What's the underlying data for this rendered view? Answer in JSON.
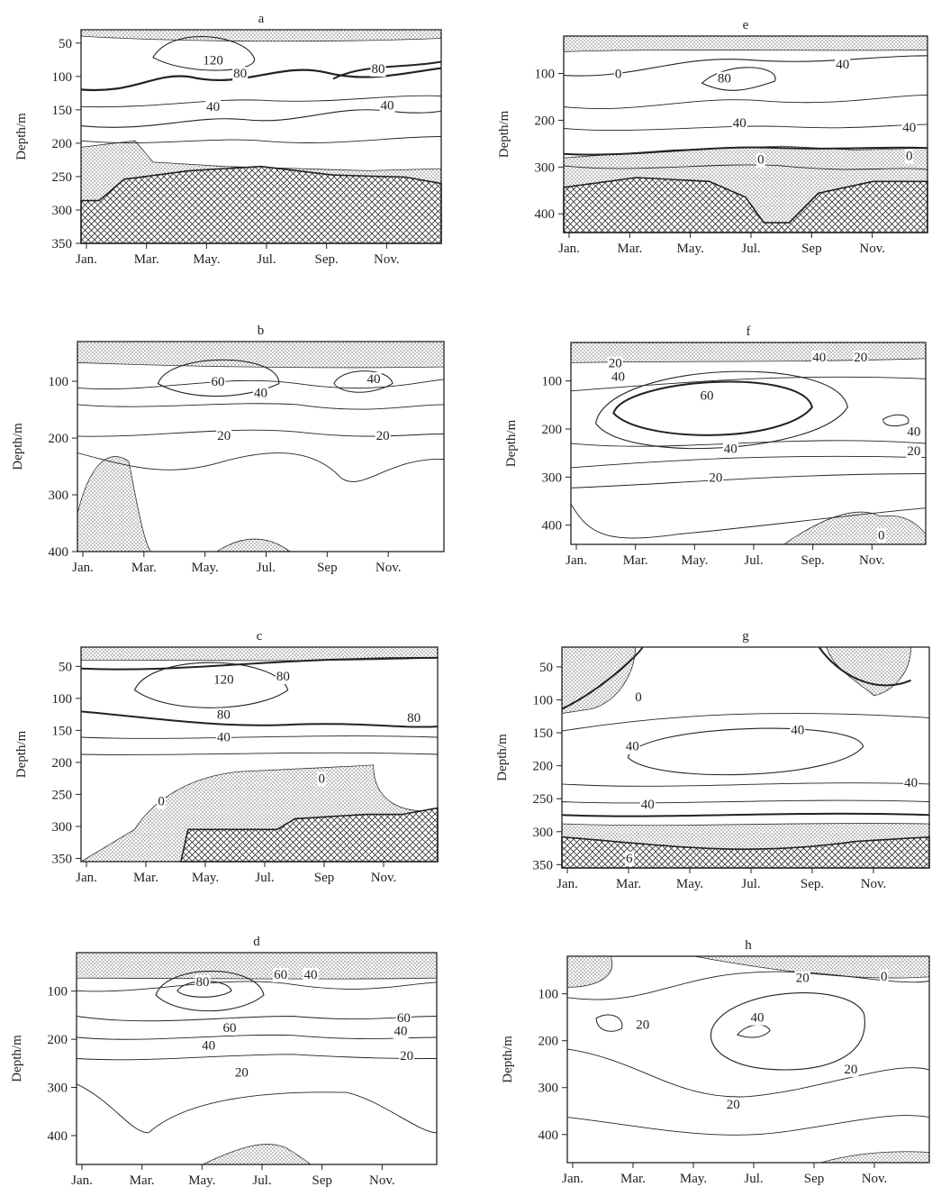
{
  "chart_data": [
    {
      "id": "a",
      "type": "contour",
      "title": "a",
      "ylabel": "Depth/m",
      "xticks": [
        "Jan.",
        "Mar.",
        "May.",
        "Jul.",
        "Sep.",
        "Nov."
      ],
      "yticks": [
        50,
        100,
        150,
        200,
        250,
        300,
        350
      ],
      "ylim": [
        30,
        350
      ],
      "contour_labels": [
        {
          "text": "120",
          "month": 4.4,
          "depth": 75
        },
        {
          "text": "80",
          "month": 5.3,
          "depth": 95
        },
        {
          "text": "80",
          "month": 9.9,
          "depth": 88
        },
        {
          "text": "40",
          "month": 4.4,
          "depth": 145
        },
        {
          "text": "40",
          "month": 10.2,
          "depth": 143
        }
      ]
    },
    {
      "id": "e",
      "type": "contour",
      "title": "e",
      "ylabel": "Depth/m",
      "xticks": [
        "Jan.",
        "Mar.",
        "May.",
        "Jul.",
        "Sep",
        "Nov."
      ],
      "yticks": [
        100,
        200,
        300,
        400
      ],
      "ylim": [
        20,
        440
      ],
      "contour_labels": [
        {
          "text": "0",
          "month": 1.8,
          "depth": 100
        },
        {
          "text": "40",
          "month": 9.2,
          "depth": 80
        },
        {
          "text": "80",
          "month": 5.3,
          "depth": 110
        },
        {
          "text": "40",
          "month": 5.8,
          "depth": 205
        },
        {
          "text": "40",
          "month": 11.4,
          "depth": 215
        },
        {
          "text": "0",
          "month": 11.4,
          "depth": 275
        },
        {
          "text": "0",
          "month": 6.5,
          "depth": 283
        }
      ]
    },
    {
      "id": "b",
      "type": "contour",
      "title": "b",
      "ylabel": "Depth/m",
      "xticks": [
        "Jan.",
        "Mar.",
        "May.",
        "Jul.",
        "Sep",
        "Nov."
      ],
      "yticks": [
        100,
        200,
        300,
        400
      ],
      "ylim": [
        30,
        400
      ],
      "contour_labels": [
        {
          "text": "60",
          "month": 4.6,
          "depth": 100
        },
        {
          "text": "40",
          "month": 6.0,
          "depth": 120
        },
        {
          "text": "40",
          "month": 9.7,
          "depth": 95
        },
        {
          "text": "20",
          "month": 4.8,
          "depth": 195
        },
        {
          "text": "20",
          "month": 10.0,
          "depth": 195
        }
      ]
    },
    {
      "id": "f",
      "type": "contour",
      "title": "f",
      "ylabel": "Depth/m",
      "xticks": [
        "Jan.",
        "Mar.",
        "May.",
        "Jul.",
        "Sep.",
        "Nov."
      ],
      "yticks": [
        100,
        200,
        300,
        400
      ],
      "ylim": [
        20,
        440
      ],
      "contour_labels": [
        {
          "text": "20",
          "month": 1.5,
          "depth": 62
        },
        {
          "text": "40",
          "month": 1.6,
          "depth": 90
        },
        {
          "text": "60",
          "month": 4.6,
          "depth": 130
        },
        {
          "text": "40",
          "month": 8.4,
          "depth": 50
        },
        {
          "text": "20",
          "month": 9.8,
          "depth": 50
        },
        {
          "text": "40",
          "month": 11.6,
          "depth": 205
        },
        {
          "text": "40",
          "month": 5.4,
          "depth": 240
        },
        {
          "text": "20",
          "month": 11.6,
          "depth": 245
        },
        {
          "text": "20",
          "month": 4.9,
          "depth": 300
        },
        {
          "text": "0",
          "month": 10.5,
          "depth": 420
        }
      ]
    },
    {
      "id": "c",
      "type": "contour",
      "title": "c",
      "ylabel": "Depth/m",
      "xticks": [
        "Jan.",
        "Mar.",
        "May.",
        "Jul.",
        "Sep",
        "Nov."
      ],
      "yticks": [
        50,
        100,
        150,
        200,
        250,
        300,
        350
      ],
      "ylim": [
        20,
        355
      ],
      "contour_labels": [
        {
          "text": "120",
          "month": 4.8,
          "depth": 70
        },
        {
          "text": "80",
          "month": 6.8,
          "depth": 65
        },
        {
          "text": "80",
          "month": 4.8,
          "depth": 125
        },
        {
          "text": "80",
          "month": 11.2,
          "depth": 130
        },
        {
          "text": "40",
          "month": 4.8,
          "depth": 160
        },
        {
          "text": "0",
          "month": 8.1,
          "depth": 225
        },
        {
          "text": "0",
          "month": 2.7,
          "depth": 260
        }
      ]
    },
    {
      "id": "g",
      "type": "contour",
      "title": "g",
      "ylabel": "Depth/m",
      "xticks": [
        "Jan.",
        "Mar.",
        "May.",
        "Jul.",
        "Sep.",
        "Nov."
      ],
      "yticks": [
        50,
        100,
        150,
        200,
        250,
        300,
        350
      ],
      "ylim": [
        20,
        355
      ],
      "contour_labels": [
        {
          "text": "0",
          "month": 2.5,
          "depth": 95
        },
        {
          "text": "40",
          "month": 7.7,
          "depth": 145
        },
        {
          "text": "40",
          "month": 2.3,
          "depth": 170
        },
        {
          "text": "40",
          "month": 11.4,
          "depth": 225
        },
        {
          "text": "40",
          "month": 2.8,
          "depth": 258
        },
        {
          "text": "6",
          "month": 2.2,
          "depth": 340
        }
      ]
    },
    {
      "id": "d",
      "type": "contour",
      "title": "d",
      "ylabel": "Depth/m",
      "xticks": [
        "Jan.",
        "Mar.",
        "May.",
        "Jul.",
        "Sep",
        "Nov."
      ],
      "yticks": [
        100,
        200,
        300,
        400
      ],
      "ylim": [
        20,
        460
      ],
      "contour_labels": [
        {
          "text": "80",
          "month": 4.2,
          "depth": 80
        },
        {
          "text": "60",
          "month": 6.8,
          "depth": 65
        },
        {
          "text": "40",
          "month": 7.8,
          "depth": 65
        },
        {
          "text": "60",
          "month": 5.1,
          "depth": 175
        },
        {
          "text": "60",
          "month": 10.9,
          "depth": 155
        },
        {
          "text": "40",
          "month": 10.8,
          "depth": 182
        },
        {
          "text": "40",
          "month": 4.4,
          "depth": 212
        },
        {
          "text": "20",
          "month": 11.0,
          "depth": 233
        },
        {
          "text": "20",
          "month": 5.5,
          "depth": 268
        }
      ]
    },
    {
      "id": "h",
      "type": "contour",
      "title": "h",
      "ylabel": "Depth/m",
      "xticks": [
        "Jan.",
        "Mar.",
        "May.",
        "Jul.",
        "Sep",
        "Nov."
      ],
      "yticks": [
        100,
        200,
        300,
        400
      ],
      "ylim": [
        20,
        460
      ],
      "contour_labels": [
        {
          "text": "20",
          "month": 7.8,
          "depth": 65
        },
        {
          "text": "0",
          "month": 10.5,
          "depth": 62
        },
        {
          "text": "20",
          "month": 2.5,
          "depth": 165
        },
        {
          "text": "40",
          "month": 6.3,
          "depth": 150
        },
        {
          "text": "20",
          "month": 9.4,
          "depth": 260
        },
        {
          "text": "20",
          "month": 5.5,
          "depth": 335
        }
      ]
    }
  ]
}
